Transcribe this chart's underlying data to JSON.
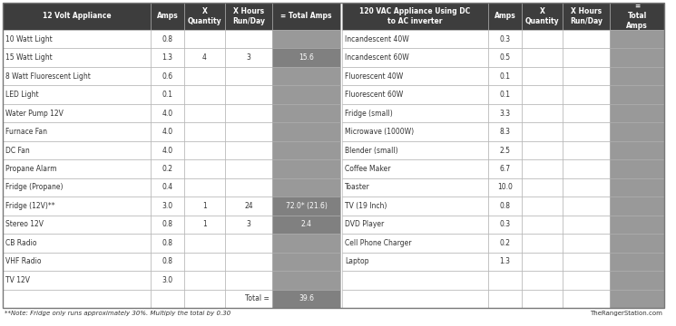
{
  "header_bg": "#3d3d3d",
  "header_fg": "#ffffff",
  "row_bg": "#ffffff",
  "empty_total_bg": "#999999",
  "filled_cell_bg": "#808080",
  "filled_cell_fg": "#ffffff",
  "border_color": "#aaaaaa",
  "left_headers": [
    "12 Volt Appliance",
    "Amps",
    "X\nQuantity",
    "X Hours\nRun/Day",
    "= Total Amps"
  ],
  "right_headers": [
    "120 VAC Appliance Using DC\nto AC inverter",
    "Amps",
    "X\nQuantity",
    "X Hours\nRun/Day",
    "=\nTotal\nAmps"
  ],
  "left_rows": [
    [
      "10 Watt Light",
      "0.8",
      "",
      "",
      ""
    ],
    [
      "15 Watt Light",
      "1.3",
      "4",
      "3",
      "15.6"
    ],
    [
      "8 Watt Fluorescent Light",
      "0.6",
      "",
      "",
      ""
    ],
    [
      "LED Light",
      "0.1",
      "",
      "",
      ""
    ],
    [
      "Water Pump 12V",
      "4.0",
      "",
      "",
      ""
    ],
    [
      "Furnace Fan",
      "4.0",
      "",
      "",
      ""
    ],
    [
      "DC Fan",
      "4.0",
      "",
      "",
      ""
    ],
    [
      "Propane Alarm",
      "0.2",
      "",
      "",
      ""
    ],
    [
      "Fridge (Propane)",
      "0.4",
      "",
      "",
      ""
    ],
    [
      "Fridge (12V)**",
      "3.0",
      "1",
      "24",
      "72.0* (21.6)"
    ],
    [
      "Stereo 12V",
      "0.8",
      "1",
      "3",
      "2.4"
    ],
    [
      "CB Radio",
      "0.8",
      "",
      "",
      ""
    ],
    [
      "VHF Radio",
      "0.8",
      "",
      "",
      ""
    ],
    [
      "TV 12V",
      "3.0",
      "",
      "",
      ""
    ]
  ],
  "right_rows": [
    [
      "Incandescent 40W",
      "0.3",
      "",
      "",
      ""
    ],
    [
      "Incandescent 60W",
      "0.5",
      "",
      "",
      ""
    ],
    [
      "Fluorescent 40W",
      "0.1",
      "",
      "",
      ""
    ],
    [
      "Fluorescent 60W",
      "0.1",
      "",
      "",
      ""
    ],
    [
      "Fridge (small)",
      "3.3",
      "",
      "",
      ""
    ],
    [
      "Microwave (1000W)",
      "8.3",
      "",
      "",
      ""
    ],
    [
      "Blender (small)",
      "2.5",
      "",
      "",
      ""
    ],
    [
      "Coffee Maker",
      "6.7",
      "",
      "",
      ""
    ],
    [
      "Toaster",
      "10.0",
      "",
      "",
      ""
    ],
    [
      "TV (19 Inch)",
      "0.8",
      "",
      "",
      ""
    ],
    [
      "DVD Player",
      "0.3",
      "",
      "",
      ""
    ],
    [
      "Cell Phone Charger",
      "0.2",
      "",
      "",
      ""
    ],
    [
      "Laptop",
      "1.3",
      "",
      "",
      ""
    ],
    [
      "",
      "",
      "",
      "",
      ""
    ]
  ],
  "total_label": "Total =",
  "total_value": "39.6",
  "note": "**Note: Fridge only runs approximately 30%. Multiply the total by 0.30",
  "site": "TheRangerStation.com",
  "n_rows": 14
}
